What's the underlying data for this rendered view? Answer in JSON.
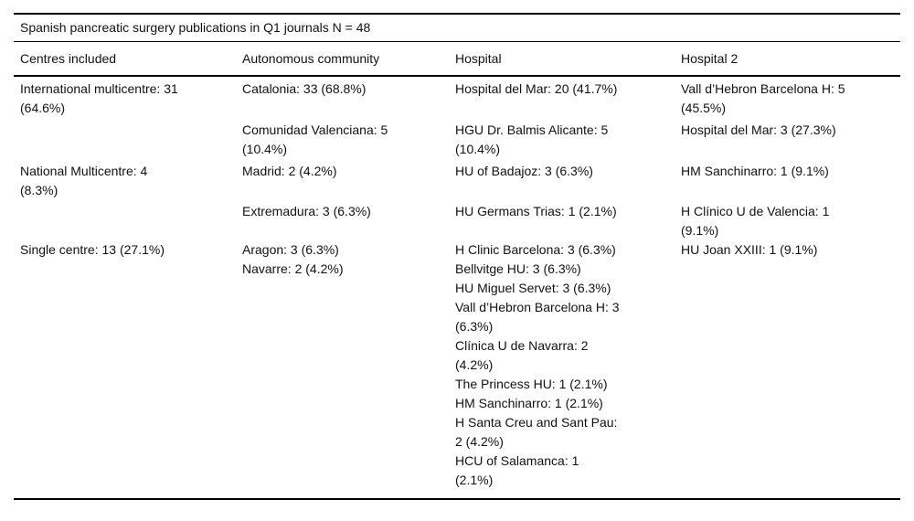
{
  "page": {
    "background": "#ffffff",
    "text_color": "#111111",
    "rule_color": "#000000"
  },
  "table": {
    "title": "Spanish pancreatic surgery publications in Q1 journals N = 48",
    "columns": [
      "Centres included",
      "Autonomous community",
      "Hospital",
      "Hospital 2"
    ],
    "rows": [
      {
        "cells": [
          "International multicentre: 31\n(64.6%)",
          "Catalonia: 33 (68.8%)",
          "Hospital del Mar: 20 (41.7%)",
          "Vall d’Hebron Barcelona H: 5\n(45.5%)"
        ]
      },
      {
        "cells": [
          "",
          "Comunidad Valenciana: 5\n(10.4%)",
          "HGU Dr. Balmis Alicante: 5\n(10.4%)",
          "Hospital del Mar: 3 (27.3%)"
        ]
      },
      {
        "cells": [
          "National Multicentre: 4\n(8.3%)",
          "Madrid: 2 (4.2%)",
          "HU of Badajoz: 3 (6.3%)",
          "HM Sanchinarro: 1 (9.1%)"
        ]
      },
      {
        "cells": [
          "",
          "Extremadura: 3 (6.3%)",
          "HU Germans Trias: 1 (2.1%)",
          "H Clínico U de Valencia: 1\n(9.1%)"
        ]
      },
      {
        "cells": [
          "Single centre: 13 (27.1%)",
          "Aragon: 3 (6.3%)\nNavarre: 2 (4.2%)",
          "H Clinic Barcelona: 3 (6.3%)\nBellvitge HU: 3 (6.3%)\nHU Miguel Servet: 3 (6.3%)\nVall d’Hebron Barcelona H: 3\n(6.3%)\nClínica U de Navarra: 2\n(4.2%)\nThe Princess HU: 1 (2.1%)\nHM Sanchinarro: 1 (2.1%)\nH Santa Creu and Sant Pau:\n2 (4.2%)\nHCU of Salamanca: 1\n(2.1%)",
          "HU Joan XXIII: 1 (9.1%)"
        ]
      }
    ]
  }
}
